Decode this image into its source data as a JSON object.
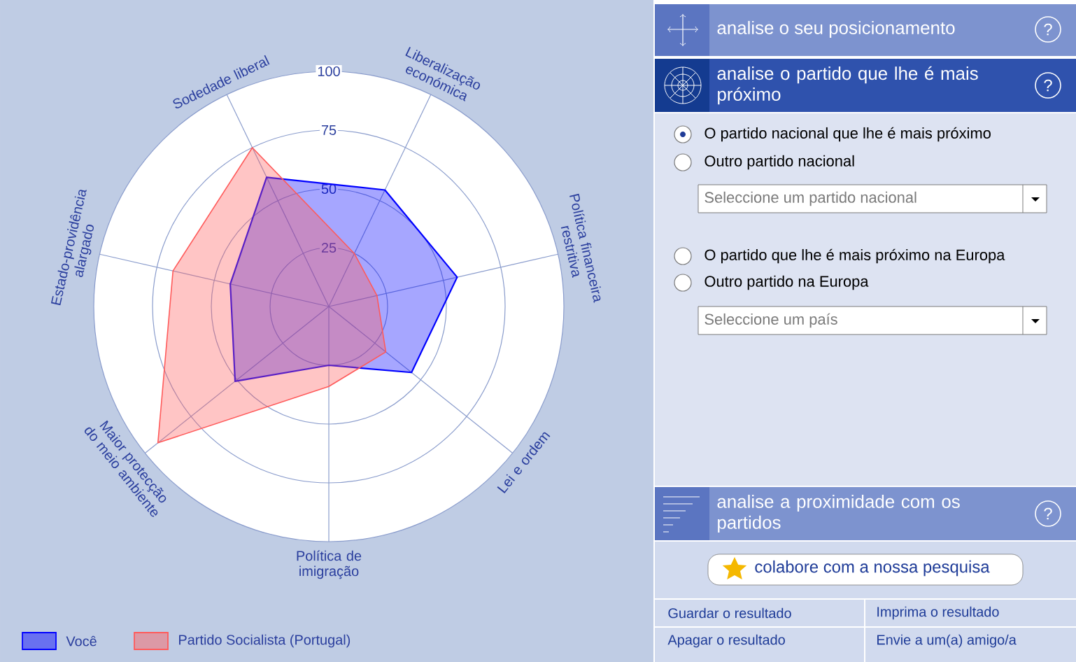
{
  "chart_data": [
    {
      "type": "radar",
      "categories": [
        "Liberalização económica",
        "Política financeira restritiva",
        "Lei e ordem",
        "Política de imigração",
        "Maior protecção do meio ambiente",
        "Estado-providência alargado",
        "Sodedade liberal"
      ],
      "series": [
        {
          "name": "Você",
          "color": "#0000ff",
          "values": [
            55,
            56,
            45,
            25,
            51,
            43,
            61
          ]
        },
        {
          "name": "Partido Socialista (Portugal)",
          "color": "#ff5a5a",
          "values": [
            25,
            21,
            31,
            34,
            93,
            68,
            75
          ]
        }
      ],
      "ylim": [
        0,
        100
      ],
      "yticks": [
        25,
        50,
        75,
        100
      ],
      "grid": true,
      "legend": "bottom left"
    },
    {
      "type": "other",
      "annotations": [
        "analise o seu posicionamento",
        "analise o partido que lhe é mais próximo",
        "O partido nacional que lhe é mais próximo",
        "Outro partido nacional",
        "Seleccione um partido nacional",
        "O partido que lhe é mais próximo na Europa",
        "Outro partido na Europa",
        "Seleccione um país",
        "analise a proximidade com os partidos",
        "colabore com a nossa pesquisa",
        "Guardar o resultado",
        "Imprima o resultado",
        "Apagar o resultado",
        "Envie a um(a) amigo/a",
        "?",
        "?",
        "?"
      ]
    }
  ]
}
